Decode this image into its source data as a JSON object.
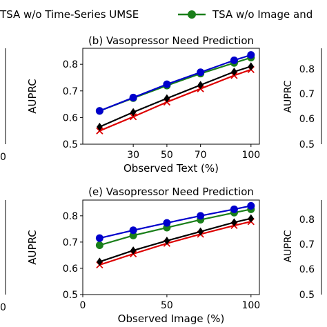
{
  "legend": {
    "entries": [
      {
        "label": "TSA w/o Time-Series UMSE",
        "color": "#000000",
        "marker": "diamond"
      },
      {
        "label": "TSA w/o Image and",
        "color": "#1a7f1a",
        "marker": "circle"
      }
    ]
  },
  "chart_data": [
    {
      "type": "line",
      "title": "(b) Vasopressor Need Prediction",
      "xlabel": "Observed Text (%)",
      "ylabel": "AUPRC",
      "x": [
        10,
        30,
        50,
        70,
        90,
        100
      ],
      "xticks": [
        "30",
        "50",
        "70",
        "100"
      ],
      "xtick_values": [
        30,
        50,
        70,
        100
      ],
      "yticks": [
        "0.5",
        "0.6",
        "0.7",
        "0.8"
      ],
      "ytick_values": [
        0.5,
        0.6,
        0.7,
        0.8
      ],
      "xlim": [
        0,
        105
      ],
      "ylim": [
        0.5,
        0.86
      ],
      "series": [
        {
          "color": "#0000cc",
          "marker": "circle",
          "values": [
            0.625,
            0.675,
            0.725,
            0.77,
            0.815,
            0.835
          ]
        },
        {
          "name": "TSA w/o Image and",
          "color": "#1a7f1a",
          "marker": "circle",
          "values": [
            0.625,
            0.673,
            0.72,
            0.765,
            0.805,
            0.825
          ]
        },
        {
          "name": "TSA w/o Time-Series UMSE",
          "color": "#000000",
          "marker": "diamond",
          "values": [
            0.565,
            0.62,
            0.672,
            0.722,
            0.772,
            0.792
          ]
        },
        {
          "color": "#dd0000",
          "marker": "x",
          "values": [
            0.55,
            0.603,
            0.658,
            0.708,
            0.758,
            0.78
          ]
        }
      ]
    },
    {
      "type": "line",
      "title": "(e) Vasopressor Need Prediction",
      "xlabel": "Observed Image (%)",
      "ylabel": "AUPRC",
      "x": [
        10,
        30,
        50,
        70,
        90,
        100
      ],
      "xticks": [
        "0",
        "50",
        "100"
      ],
      "xtick_values": [
        0,
        50,
        100
      ],
      "yticks": [
        "0.5",
        "0.6",
        "0.7",
        "0.8"
      ],
      "ytick_values": [
        0.5,
        0.6,
        0.7,
        0.8
      ],
      "xlim": [
        0,
        105
      ],
      "ylim": [
        0.5,
        0.86
      ],
      "series": [
        {
          "color": "#0000cc",
          "marker": "circle",
          "values": [
            0.715,
            0.745,
            0.773,
            0.8,
            0.825,
            0.838
          ]
        },
        {
          "name": "TSA w/o Image and",
          "color": "#1a7f1a",
          "marker": "circle",
          "values": [
            0.688,
            0.725,
            0.755,
            0.785,
            0.812,
            0.825
          ]
        },
        {
          "name": "TSA w/o Time-Series UMSE",
          "color": "#000000",
          "marker": "diamond",
          "values": [
            0.625,
            0.668,
            0.705,
            0.74,
            0.775,
            0.79
          ]
        },
        {
          "color": "#dd0000",
          "marker": "x",
          "values": [
            0.613,
            0.655,
            0.695,
            0.73,
            0.763,
            0.778
          ]
        }
      ]
    }
  ],
  "side_panels": {
    "left_top_xtick": "0",
    "left_bottom_xtick": "0",
    "right_top": {
      "ylabel": "AUPRC",
      "yticks": [
        "0.5",
        "0.6",
        "0.7",
        "0.8"
      ]
    },
    "right_bottom": {
      "ylabel": "AUPRC",
      "yticks": [
        "0.5",
        "0.6",
        "0.7",
        "0.8"
      ]
    }
  }
}
